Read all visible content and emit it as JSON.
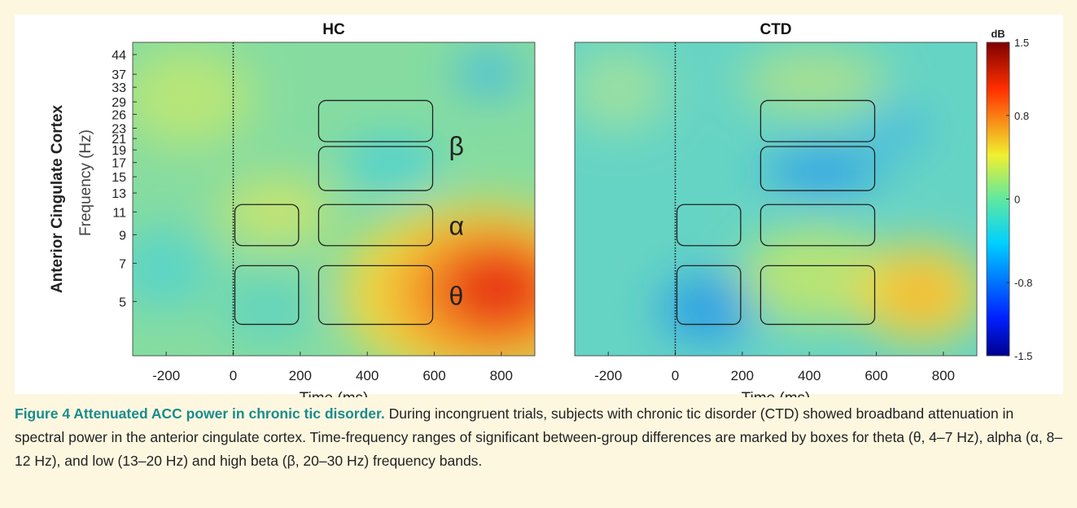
{
  "figure": {
    "row_label": "Anterior Cingulate Cortex",
    "xlim": [
      -300,
      900
    ],
    "ylim": [
      3.1,
      49
    ],
    "yscale": "log",
    "panels": [
      {
        "title": "HC",
        "xlabel": "Time (ms)",
        "xticks": [
          -200,
          0,
          200,
          400,
          600,
          800
        ],
        "ylabel": "Frequency (Hz)",
        "yticks": [
          5,
          7,
          9,
          11,
          13,
          15,
          17,
          19,
          21,
          23,
          26,
          29,
          33,
          37,
          44
        ],
        "band_labels": true
      },
      {
        "title": "CTD",
        "xlabel": "Time (ms)",
        "xticks": [
          -200,
          0,
          200,
          400,
          600,
          800
        ],
        "band_labels": false
      }
    ],
    "bands": [
      {
        "label": "θ",
        "ranges": [
          [
            4,
            7
          ]
        ],
        "windows": [
          [
            0,
            200
          ],
          [
            250,
            600
          ]
        ]
      },
      {
        "label": "α",
        "ranges": [
          [
            8,
            12
          ]
        ],
        "windows": [
          [
            0,
            200
          ],
          [
            250,
            600
          ]
        ]
      },
      {
        "label": "β",
        "ranges": [
          [
            13,
            20
          ],
          [
            20,
            30
          ]
        ],
        "windows": [
          [
            250,
            600
          ]
        ]
      }
    ],
    "colorbar": {
      "title": "dB",
      "lim": [
        -1.5,
        1.5
      ],
      "ticks": [
        1.5,
        0.8,
        0,
        -0.8,
        -1.5
      ]
    },
    "caption": {
      "label": "Figure 4 Attenuated ACC power in chronic tic disorder.",
      "text": "During incongruent trials, subjects with chronic tic disorder (CTD) showed broadband attenuation in spectral power in the anterior cingulate cortex. Time-frequency ranges of significant between-group differences are marked by boxes for theta (θ, 4–7 Hz), alpha (α, 8–12 Hz), and low (13–20 Hz) and high beta (β, 20–30 Hz) frequency bands."
    }
  }
}
